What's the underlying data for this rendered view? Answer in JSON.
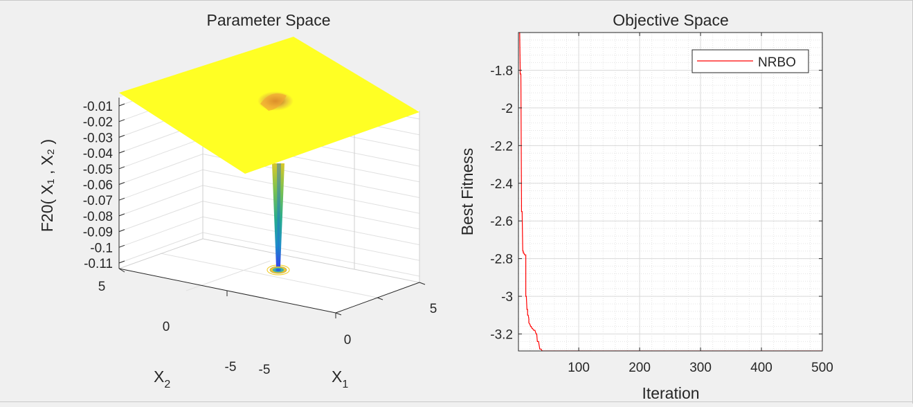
{
  "chart_data": [
    {
      "type": "surface",
      "title": "Parameter Space",
      "xlabel": "X",
      "xlabel_sub": "1",
      "ylabel": "X",
      "ylabel_sub": "2",
      "zlabel": "F20( X₁ , X₂ )",
      "x_ticks": [
        "-5",
        "0",
        "5"
      ],
      "y_ticks": [
        "-5",
        "0",
        "5"
      ],
      "z_ticks": [
        "-0.01",
        "-0.02",
        "-0.03",
        "-0.04",
        "-0.05",
        "-0.06",
        "-0.07",
        "-0.08",
        "-0.09",
        "-0.1",
        "-0.11"
      ],
      "xlim": [
        -5,
        5
      ],
      "ylim": [
        -5,
        5
      ],
      "zlim": [
        -0.115,
        0
      ],
      "minimum": {
        "x": 0.8,
        "y": 0.3,
        "z": -0.115
      },
      "surface_color": "#ffff24",
      "grid": true
    },
    {
      "type": "line",
      "title": "Objective Space",
      "xlabel": "Iteration",
      "ylabel": "Best Fitness",
      "xlim": [
        1,
        500
      ],
      "ylim": [
        -3.29,
        -1.6
      ],
      "x_ticks": [
        100,
        200,
        300,
        400,
        500
      ],
      "y_ticks": [
        -1.8,
        -2,
        -2.2,
        -2.4,
        -2.6,
        -2.8,
        -3,
        -3.2
      ],
      "y_tick_labels": [
        "-1.8",
        "-2",
        "-2.2",
        "-2.4",
        "-2.6",
        "-2.8",
        "-3",
        "-3.2"
      ],
      "x_tick_labels": [
        "100",
        "200",
        "300",
        "400",
        "500"
      ],
      "grid": true,
      "minor_grid": true,
      "legend_position": "top-right",
      "series": [
        {
          "name": "NRBO",
          "color": "#ff0000",
          "x": [
            1,
            3,
            4,
            5,
            6,
            6,
            7,
            8,
            9,
            9,
            10,
            11,
            12,
            13,
            13,
            14,
            15,
            16,
            16,
            17,
            18,
            18,
            20,
            21,
            22,
            23,
            24,
            26,
            28,
            30,
            31,
            32,
            34,
            35,
            36,
            38,
            40,
            500
          ],
          "y": [
            -1.6,
            -1.6,
            -1.82,
            -1.82,
            -2.5,
            -2.55,
            -2.55,
            -2.76,
            -2.76,
            -2.77,
            -2.77,
            -2.78,
            -2.78,
            -2.78,
            -3.0,
            -3.0,
            -3.07,
            -3.07,
            -3.1,
            -3.1,
            -3.12,
            -3.14,
            -3.15,
            -3.16,
            -3.16,
            -3.17,
            -3.17,
            -3.18,
            -3.18,
            -3.2,
            -3.2,
            -3.24,
            -3.24,
            -3.26,
            -3.28,
            -3.28,
            -3.29,
            -3.29
          ]
        }
      ]
    }
  ]
}
